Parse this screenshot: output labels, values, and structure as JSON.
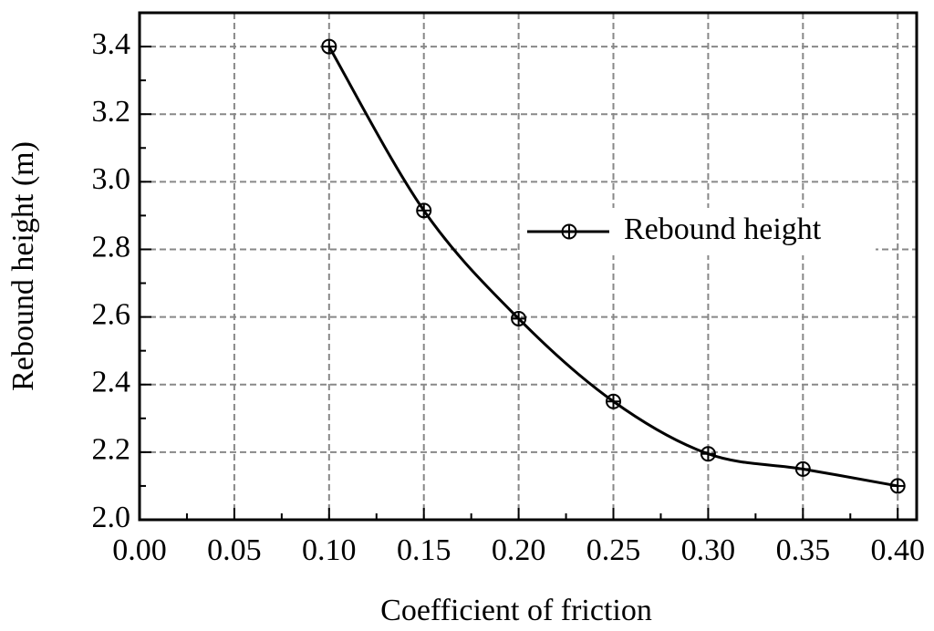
{
  "chart_data": {
    "type": "line",
    "x_label": "Coefficient of friction",
    "y_label": "Rebound height (m)",
    "x": [
      0.1,
      0.15,
      0.2,
      0.25,
      0.3,
      0.35,
      0.4
    ],
    "series": [
      {
        "name": "Rebound height",
        "color": "#000000",
        "values": [
          3.4,
          2.915,
          2.595,
          2.35,
          2.195,
          2.15,
          2.1
        ]
      }
    ],
    "xlim": [
      0,
      0.41
    ],
    "ylim": [
      2.0,
      3.5
    ],
    "xticks": [
      {
        "value": 0,
        "label": "0.00"
      },
      0.05,
      {
        "value": 0.1,
        "label": "0.10"
      },
      0.15,
      {
        "value": 0.2,
        "label": "0.20"
      },
      0.25,
      {
        "value": 0.3,
        "label": "0.30"
      },
      0.35,
      {
        "value": 0.4,
        "label": "0.40"
      }
    ],
    "yticks": [
      {
        "value": 2,
        "label": "2.0"
      },
      2.2,
      2.4,
      2.6,
      2.8,
      {
        "value": 3,
        "label": "3.0"
      },
      3.2,
      3.4
    ],
    "grid": true,
    "legend": "right"
  }
}
